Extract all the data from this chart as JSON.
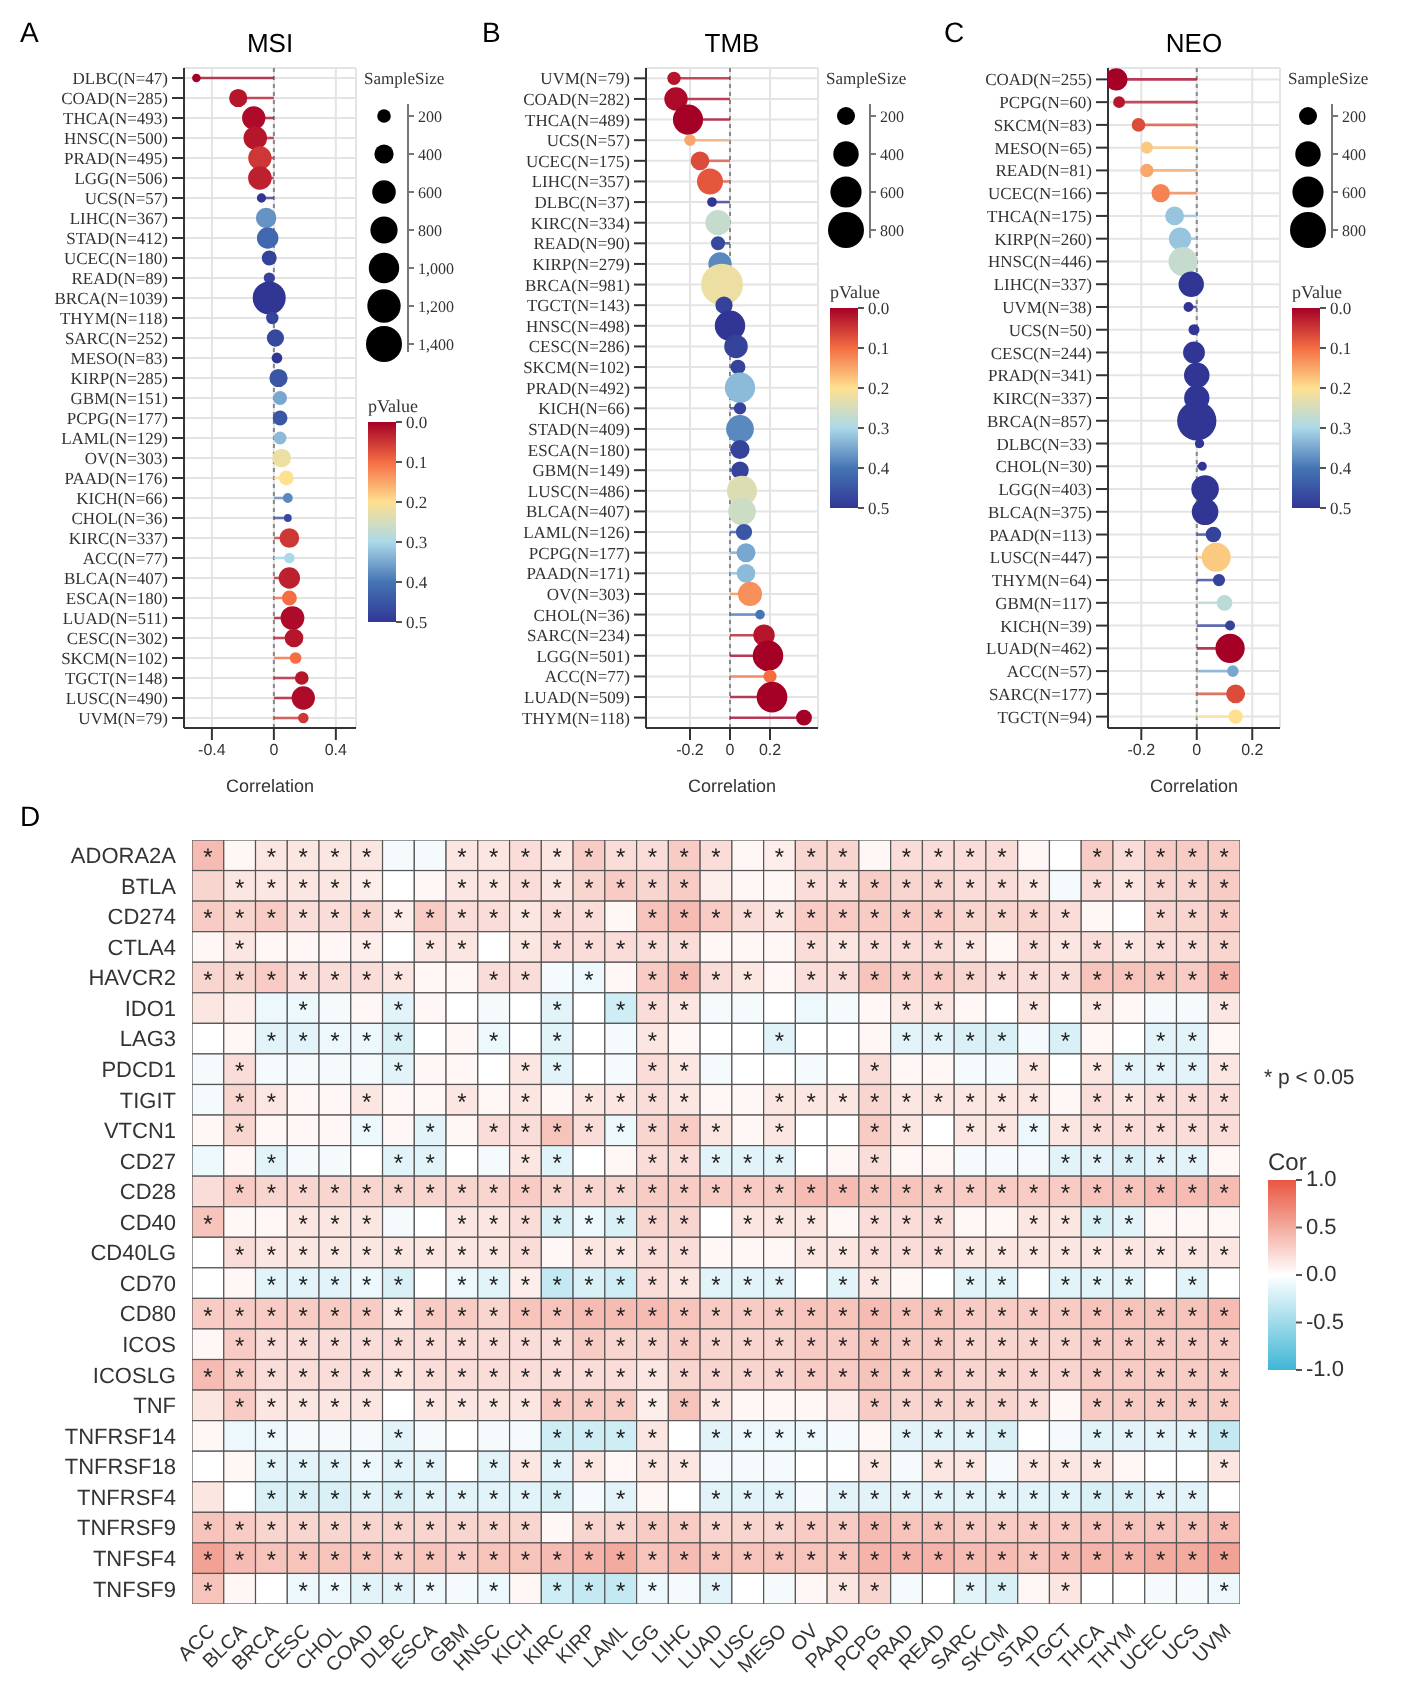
{
  "chart_data": [
    {
      "type": "lollipop",
      "orientation": "horizontal",
      "title": "MSI",
      "xlabel": "Correlation",
      "annotations": [
        "A"
      ],
      "legend_title": "SampleSize",
      "clabel": "pValue",
      "grid": true,
      "categories": [
        "DLBC(N=47)",
        "COAD(N=285)",
        "THCA(N=493)",
        "HNSC(N=500)",
        "PRAD(N=495)",
        "LGG(N=506)",
        "UCS(N=57)",
        "LIHC(N=367)",
        "STAD(N=412)",
        "UCEC(N=180)",
        "READ(N=89)",
        "BRCA(N=1039)",
        "THYM(N=118)",
        "SARC(N=252)",
        "MESO(N=83)",
        "KIRP(N=285)",
        "GBM(N=151)",
        "PCPG(N=177)",
        "LAML(N=129)",
        "OV(N=303)",
        "PAAD(N=176)",
        "KICH(N=66)",
        "CHOL(N=36)",
        "KIRC(N=337)",
        "ACC(N=77)",
        "BLCA(N=407)",
        "ESCA(N=180)",
        "LUAD(N=511)",
        "CESC(N=302)",
        "SKCM(N=102)",
        "TGCT(N=148)",
        "LUSC(N=490)",
        "UVM(N=79)"
      ],
      "values": [
        -0.5,
        -0.23,
        -0.13,
        -0.12,
        -0.09,
        -0.09,
        -0.08,
        -0.05,
        -0.04,
        -0.03,
        -0.03,
        -0.03,
        -0.01,
        0.01,
        0.02,
        0.03,
        0.04,
        0.04,
        0.04,
        0.05,
        0.08,
        0.09,
        0.09,
        0.1,
        0.1,
        0.1,
        0.1,
        0.12,
        0.13,
        0.14,
        0.18,
        0.19,
        0.19
      ],
      "sizes": [
        47,
        285,
        493,
        500,
        495,
        506,
        57,
        367,
        412,
        180,
        89,
        1039,
        118,
        252,
        83,
        285,
        151,
        177,
        129,
        303,
        176,
        66,
        36,
        337,
        77,
        407,
        180,
        511,
        302,
        102,
        148,
        490,
        79
      ],
      "cvalues": [
        0,
        0.02,
        0.01,
        0.02,
        0.05,
        0.03,
        0.5,
        0.37,
        0.42,
        0.48,
        0.48,
        0.5,
        0.48,
        0.47,
        0.5,
        0.45,
        0.35,
        0.45,
        0.33,
        0.22,
        0.2,
        0.38,
        0.47,
        0.05,
        0.3,
        0.03,
        0.1,
        0.01,
        0.02,
        0.1,
        0.02,
        0.01,
        0.05
      ],
      "size_legend": [
        200,
        400,
        600,
        800,
        {
          "value": 1000,
          "label": "1,000"
        },
        {
          "value": 1200,
          "label": "1,200"
        },
        {
          "value": 1400,
          "label": "1,400"
        }
      ],
      "clim": [
        0.5,
        0
      ],
      "cticks": [
        {
          "value": 0,
          "label": "0.0"
        },
        0.1,
        0.2,
        0.3,
        0.4,
        0.5
      ],
      "xlim": [
        -0.58,
        0.53
      ],
      "xticks": [
        -0.4,
        0,
        0.4
      ],
      "ref_lines": [
        {
          "axis": "x",
          "value": 0,
          "line_style": "dotted"
        }
      ]
    },
    {
      "type": "lollipop",
      "orientation": "horizontal",
      "title": "TMB",
      "xlabel": "Correlation",
      "annotations": [
        "B"
      ],
      "legend_title": "SampleSize",
      "clabel": "pValue",
      "grid": true,
      "categories": [
        "UVM(N=79)",
        "COAD(N=282)",
        "THCA(N=489)",
        "UCS(N=57)",
        "UCEC(N=175)",
        "LIHC(N=357)",
        "DLBC(N=37)",
        "KIRC(N=334)",
        "READ(N=90)",
        "KIRP(N=279)",
        "BRCA(N=981)",
        "TGCT(N=143)",
        "HNSC(N=498)",
        "CESC(N=286)",
        "SKCM(N=102)",
        "PRAD(N=492)",
        "KICH(N=66)",
        "STAD(N=409)",
        "ESCA(N=180)",
        "GBM(N=149)",
        "LUSC(N=486)",
        "BLCA(N=407)",
        "LAML(N=126)",
        "PCPG(N=177)",
        "PAAD(N=171)",
        "OV(N=303)",
        "CHOL(N=36)",
        "SARC(N=234)",
        "LGG(N=501)",
        "ACC(N=77)",
        "LUAD(N=509)",
        "THYM(N=118)"
      ],
      "values": [
        -0.28,
        -0.27,
        -0.21,
        -0.2,
        -0.15,
        -0.1,
        -0.09,
        -0.06,
        -0.06,
        -0.05,
        -0.04,
        -0.03,
        0,
        0.03,
        0.04,
        0.05,
        0.05,
        0.05,
        0.05,
        0.05,
        0.06,
        0.06,
        0.07,
        0.08,
        0.08,
        0.1,
        0.15,
        0.17,
        0.19,
        0.2,
        0.21,
        0.37
      ],
      "sizes": [
        79,
        282,
        489,
        57,
        175,
        357,
        37,
        334,
        90,
        279,
        981,
        143,
        498,
        286,
        102,
        492,
        66,
        409,
        180,
        149,
        486,
        407,
        126,
        177,
        171,
        303,
        36,
        234,
        501,
        77,
        509,
        118
      ],
      "cvalues": [
        0.02,
        0.01,
        0,
        0.15,
        0.07,
        0.08,
        0.5,
        0.27,
        0.47,
        0.38,
        0.22,
        0.48,
        0.5,
        0.48,
        0.48,
        0.33,
        0.48,
        0.38,
        0.48,
        0.48,
        0.24,
        0.26,
        0.45,
        0.35,
        0.33,
        0.13,
        0.4,
        0.02,
        0,
        0.1,
        0,
        0
      ],
      "size_legend": [
        200,
        400,
        600,
        800
      ],
      "clim": [
        0.5,
        0
      ],
      "cticks": [
        {
          "value": 0,
          "label": "0.0"
        },
        0.1,
        0.2,
        0.3,
        0.4,
        0.5
      ],
      "xlim": [
        -0.42,
        0.44
      ],
      "xticks": [
        -0.2,
        0,
        0.2
      ],
      "ref_lines": [
        {
          "axis": "x",
          "value": 0,
          "line_style": "dotted"
        }
      ]
    },
    {
      "type": "lollipop",
      "orientation": "horizontal",
      "title": "NEO",
      "xlabel": "Correlation",
      "annotations": [
        "C"
      ],
      "legend_title": "SampleSize",
      "clabel": "pValue",
      "grid": true,
      "categories": [
        "COAD(N=255)",
        "PCPG(N=60)",
        "SKCM(N=83)",
        "MESO(N=65)",
        "READ(N=81)",
        "UCEC(N=166)",
        "THCA(N=175)",
        "KIRP(N=260)",
        "HNSC(N=446)",
        "LIHC(N=337)",
        "UVM(N=38)",
        "UCS(N=50)",
        "CESC(N=244)",
        "PRAD(N=341)",
        "KIRC(N=337)",
        "BRCA(N=857)",
        "DLBC(N=33)",
        "CHOL(N=30)",
        "LGG(N=403)",
        "BLCA(N=375)",
        "PAAD(N=113)",
        "LUSC(N=447)",
        "THYM(N=64)",
        "GBM(N=117)",
        "KICH(N=39)",
        "LUAD(N=462)",
        "ACC(N=57)",
        "SARC(N=177)",
        "TGCT(N=94)"
      ],
      "values": [
        -0.29,
        -0.28,
        -0.21,
        -0.18,
        -0.18,
        -0.13,
        -0.08,
        -0.06,
        -0.05,
        -0.02,
        -0.03,
        -0.01,
        -0.01,
        0,
        0,
        0,
        0.01,
        0.02,
        0.03,
        0.03,
        0.06,
        0.07,
        0.08,
        0.1,
        0.12,
        0.12,
        0.13,
        0.14,
        0.14
      ],
      "sizes": [
        255,
        60,
        83,
        65,
        81,
        166,
        175,
        260,
        446,
        337,
        38,
        50,
        244,
        341,
        337,
        857,
        33,
        30,
        403,
        375,
        113,
        447,
        64,
        117,
        39,
        462,
        57,
        177,
        94
      ],
      "cvalues": [
        0,
        0.02,
        0.07,
        0.18,
        0.15,
        0.12,
        0.32,
        0.32,
        0.27,
        0.5,
        0.5,
        0.5,
        0.5,
        0.5,
        0.5,
        0.5,
        0.5,
        0.5,
        0.5,
        0.5,
        0.48,
        0.18,
        0.48,
        0.28,
        0.48,
        0,
        0.35,
        0.07,
        0.2
      ],
      "size_legend": [
        200,
        400,
        600,
        800
      ],
      "clim": [
        0.5,
        0
      ],
      "cticks": [
        {
          "value": 0,
          "label": "0.0"
        },
        0.1,
        0.2,
        0.3,
        0.4,
        0.5
      ],
      "xlim": [
        -0.32,
        0.3
      ],
      "xticks": [
        -0.2,
        0,
        0.2
      ],
      "ref_lines": [
        {
          "axis": "x",
          "value": 0,
          "line_style": "dotted"
        }
      ]
    },
    {
      "type": "heatmap",
      "annotations": [
        "D",
        "* p < 0.05"
      ],
      "clabel": "Cor",
      "categories": [
        "ACC",
        "BLCA",
        "BRCA",
        "CESC",
        "CHOL",
        "COAD",
        "DLBC",
        "ESCA",
        "GBM",
        "HNSC",
        "KICH",
        "KIRC",
        "KIRP",
        "LAML",
        "LGG",
        "LIHC",
        "LUAD",
        "LUSC",
        "MESO",
        "OV",
        "PAAD",
        "PCPG",
        "PRAD",
        "READ",
        "SARC",
        "SKCM",
        "STAD",
        "TGCT",
        "THCA",
        "THYM",
        "UCEC",
        "UCS",
        "UVM"
      ],
      "y_categories": [
        "ADORA2A",
        "BTLA",
        "CD274",
        "CTLA4",
        "HAVCR2",
        "IDO1",
        "LAG3",
        "PDCD1",
        "TIGIT",
        "VTCN1",
        "CD27",
        "CD28",
        "CD40",
        "CD40LG",
        "CD70",
        "CD80",
        "ICOS",
        "ICOSLG",
        "TNF",
        "TNFRSF14",
        "TNFRSF18",
        "TNFRSF4",
        "TNFRSF9",
        "TNFSF4",
        "TNFSF9"
      ],
      "clim": [
        -1,
        1
      ],
      "cticks": [
        {
          "value": 1,
          "label": "1.0"
        },
        0.5,
        {
          "value": 0,
          "label": "0.0"
        },
        -0.5,
        {
          "value": -1,
          "label": "-1.0"
        }
      ],
      "cells": [
        [
          0.4,
          0.05,
          0.15,
          0.15,
          0.15,
          0.15,
          -0.05,
          -0.05,
          0.15,
          0.15,
          0.2,
          0.15,
          0.3,
          0.2,
          0.2,
          0.3,
          0.2,
          0.05,
          0.1,
          0.25,
          0.25,
          0.05,
          0.2,
          0.2,
          0.2,
          0.2,
          0.05,
          0,
          0.3,
          0.2,
          0.3,
          0.3,
          0.3
        ],
        [
          0.25,
          0.15,
          0.15,
          0.15,
          0.15,
          0.1,
          0,
          0.05,
          0.15,
          0.15,
          0.2,
          0.15,
          0.25,
          0.3,
          0.25,
          0.3,
          0.1,
          0.05,
          0.05,
          0.2,
          0.2,
          0.3,
          0.25,
          0.25,
          0.2,
          0.2,
          0.15,
          -0.05,
          0.2,
          0.15,
          0.25,
          0.25,
          0.3
        ],
        [
          0.3,
          0.25,
          0.3,
          0.2,
          0.2,
          0.25,
          0.1,
          0.3,
          0.2,
          0.2,
          0.15,
          0.2,
          0.2,
          0.05,
          0.35,
          0.4,
          0.3,
          0.2,
          0.15,
          0.3,
          0.3,
          0.3,
          0.3,
          0.3,
          0.25,
          0.25,
          0.25,
          0.2,
          0.05,
          0,
          0.25,
          0.25,
          0.3
        ],
        [
          0.05,
          0.15,
          0.05,
          0.05,
          0.05,
          0.1,
          0,
          0.15,
          0.15,
          0,
          0.15,
          0.2,
          0.2,
          0.2,
          0.2,
          0.2,
          0.05,
          0.05,
          0.05,
          0.2,
          0.15,
          0.2,
          0.2,
          0.2,
          0.15,
          0.05,
          0.2,
          0.15,
          0.2,
          0.15,
          0.2,
          0.2,
          0.25
        ],
        [
          0.25,
          0.25,
          0.3,
          0.2,
          0.2,
          0.2,
          0.15,
          0.05,
          0.05,
          0.2,
          0.2,
          -0.05,
          -0.1,
          0.05,
          0.3,
          0.4,
          0.2,
          0.15,
          0.05,
          0.2,
          0.2,
          0.35,
          0.3,
          0.3,
          0.25,
          0.2,
          0.2,
          0.2,
          0.35,
          0.35,
          0.35,
          0.3,
          0.45
        ],
        [
          0.15,
          0.1,
          -0.1,
          -0.1,
          -0.05,
          0.05,
          -0.15,
          0.05,
          0,
          -0.05,
          0,
          -0.15,
          0,
          -0.25,
          0.2,
          0.15,
          -0.05,
          -0.05,
          0,
          -0.1,
          -0.05,
          0.05,
          0.15,
          0.15,
          0.05,
          0,
          0.15,
          0,
          0.15,
          0.05,
          -0.05,
          -0.05,
          0.15
        ],
        [
          0,
          0.05,
          -0.15,
          -0.15,
          -0.1,
          -0.1,
          -0.2,
          0,
          0.05,
          -0.1,
          0,
          -0.15,
          0,
          -0.05,
          0.15,
          0.05,
          0,
          0,
          -0.15,
          0,
          0,
          0.05,
          -0.15,
          -0.15,
          -0.2,
          -0.2,
          -0.05,
          -0.2,
          0.05,
          0,
          -0.15,
          -0.15,
          0.05
        ],
        [
          -0.05,
          0.2,
          -0.05,
          -0.05,
          -0.05,
          -0.05,
          -0.15,
          0.05,
          0.05,
          0,
          0.15,
          -0.15,
          0,
          -0.05,
          0.2,
          0.15,
          -0.05,
          0,
          0,
          -0.05,
          0,
          0.2,
          0.05,
          0.05,
          -0.05,
          -0.05,
          0.15,
          0,
          0.15,
          -0.15,
          -0.15,
          -0.15,
          0.15
        ],
        [
          -0.05,
          0.25,
          0.15,
          0.05,
          0.05,
          0.15,
          0.05,
          0.05,
          0.15,
          0.05,
          0.15,
          0.05,
          0.15,
          0.15,
          0.2,
          0.15,
          0.05,
          0.05,
          0.15,
          0.15,
          0.15,
          0.25,
          0.15,
          0.15,
          0.15,
          0.15,
          0.15,
          0.05,
          0.2,
          0.15,
          0.2,
          0.2,
          0.2
        ],
        [
          0.05,
          0.25,
          0.05,
          0.05,
          0.05,
          -0.1,
          0.05,
          -0.15,
          0.05,
          0.2,
          0.2,
          0.35,
          0.2,
          -0.1,
          0.25,
          0.3,
          0.15,
          0.05,
          0.15,
          0,
          0,
          0.3,
          0.15,
          0,
          0.15,
          0.15,
          -0.1,
          0.15,
          0.2,
          0.2,
          0.2,
          0.2,
          0.2
        ],
        [
          -0.1,
          0.05,
          -0.15,
          -0.05,
          -0.05,
          0,
          -0.15,
          -0.15,
          0,
          -0.05,
          0.15,
          -0.15,
          0,
          0.05,
          0.2,
          0.2,
          -0.15,
          -0.15,
          -0.15,
          0,
          0.05,
          0.2,
          0.05,
          0.05,
          -0.05,
          -0.05,
          -0.05,
          -0.15,
          -0.15,
          -0.2,
          -0.15,
          -0.15,
          0.05
        ],
        [
          0.2,
          0.3,
          0.25,
          0.25,
          0.25,
          0.25,
          0.25,
          0.25,
          0.25,
          0.25,
          0.3,
          0.25,
          0.25,
          0.25,
          0.3,
          0.3,
          0.3,
          0.3,
          0.3,
          0.4,
          0.4,
          0.35,
          0.35,
          0.3,
          0.3,
          0.3,
          0.3,
          0.3,
          0.35,
          0.35,
          0.4,
          0.4,
          0.4
        ],
        [
          0.35,
          0.05,
          0.05,
          0.15,
          0.15,
          0.15,
          -0.05,
          0,
          0.15,
          0.15,
          0.2,
          -0.2,
          -0.1,
          -0.2,
          0.25,
          0.25,
          0,
          0.15,
          0.15,
          0.15,
          0.05,
          0.2,
          0.2,
          0.2,
          0.05,
          0.05,
          0.15,
          0.15,
          -0.2,
          -0.15,
          0.05,
          0.05,
          0.05
        ],
        [
          0,
          0.2,
          0.15,
          0.15,
          0.15,
          0.15,
          0.15,
          0.15,
          0.15,
          0.15,
          0.2,
          0.05,
          0.15,
          0.15,
          0.2,
          0.2,
          0.05,
          0.05,
          0.05,
          0.15,
          0.15,
          0.2,
          0.2,
          0.2,
          0.15,
          0.15,
          0.15,
          0.15,
          0.15,
          0.15,
          0.15,
          0.15,
          0.15
        ],
        [
          0,
          0.05,
          -0.15,
          -0.15,
          -0.15,
          -0.1,
          -0.2,
          0,
          -0.1,
          -0.15,
          0.1,
          -0.3,
          -0.2,
          -0.25,
          0.2,
          0.15,
          -0.15,
          -0.15,
          -0.15,
          0,
          -0.15,
          0.15,
          0.05,
          0,
          -0.15,
          -0.15,
          0,
          -0.15,
          -0.15,
          -0.15,
          0,
          -0.15,
          0
        ],
        [
          0.3,
          0.3,
          0.3,
          0.3,
          0.3,
          0.3,
          0.15,
          0.3,
          0.3,
          0.25,
          0.35,
          0.35,
          0.4,
          0.4,
          0.4,
          0.35,
          0.3,
          0.3,
          0.3,
          0.35,
          0.35,
          0.4,
          0.35,
          0.35,
          0.3,
          0.3,
          0.3,
          0.3,
          0.35,
          0.35,
          0.35,
          0.35,
          0.4
        ],
        [
          0.05,
          0.3,
          0.2,
          0.2,
          0.2,
          0.2,
          0.2,
          0.2,
          0.2,
          0.2,
          0.2,
          0.2,
          0.3,
          0.25,
          0.25,
          0.3,
          0.25,
          0.25,
          0.25,
          0.3,
          0.3,
          0.35,
          0.3,
          0.3,
          0.25,
          0.25,
          0.25,
          0.25,
          0.3,
          0.3,
          0.3,
          0.3,
          0.3
        ],
        [
          0.4,
          0.3,
          0.2,
          0.2,
          0.2,
          0.2,
          0.15,
          0.2,
          0.2,
          0.2,
          0.2,
          0.2,
          0.2,
          0.2,
          0.15,
          0.25,
          0.25,
          0.25,
          0.25,
          0.3,
          0.3,
          0.35,
          0.3,
          0.3,
          0.25,
          0.25,
          0.25,
          0.25,
          0.3,
          0.3,
          0.3,
          0.3,
          0.3
        ],
        [
          0.15,
          0.3,
          0.15,
          0.15,
          0.15,
          0.15,
          0,
          0.15,
          0.15,
          0.15,
          0.15,
          0.3,
          0.3,
          0.3,
          0.1,
          0.35,
          0.15,
          0.05,
          0.05,
          0.05,
          0.1,
          0.3,
          0.25,
          0.25,
          0.25,
          0.25,
          0.2,
          0.05,
          0.3,
          0.3,
          0.3,
          0.3,
          0.3
        ],
        [
          0.05,
          -0.1,
          -0.1,
          -0.05,
          -0.05,
          -0.05,
          -0.15,
          -0.05,
          0,
          -0.05,
          -0.05,
          -0.25,
          -0.25,
          -0.25,
          0.15,
          0,
          -0.15,
          -0.1,
          -0.1,
          -0.1,
          -0.05,
          0.05,
          -0.15,
          -0.15,
          -0.15,
          -0.2,
          0,
          -0.05,
          -0.15,
          -0.15,
          -0.15,
          -0.15,
          -0.3
        ],
        [
          0,
          0.05,
          -0.15,
          -0.15,
          -0.15,
          -0.1,
          -0.15,
          -0.15,
          0,
          -0.15,
          0.15,
          -0.15,
          0.15,
          0.05,
          0.15,
          0.15,
          -0.05,
          -0.05,
          -0.05,
          0,
          0,
          0.15,
          -0.05,
          0.15,
          0.15,
          -0.05,
          0.15,
          0.15,
          0.15,
          0.05,
          0,
          0,
          0.15
        ],
        [
          0.15,
          0,
          -0.2,
          -0.2,
          -0.2,
          -0.15,
          -0.2,
          -0.15,
          -0.15,
          -0.15,
          -0.15,
          -0.2,
          -0.05,
          -0.15,
          0.05,
          0,
          -0.15,
          -0.15,
          -0.15,
          -0.05,
          -0.15,
          -0.15,
          -0.15,
          -0.15,
          -0.15,
          -0.15,
          -0.15,
          -0.15,
          -0.2,
          -0.2,
          -0.15,
          -0.15,
          0
        ],
        [
          0.35,
          0.3,
          0.25,
          0.25,
          0.25,
          0.25,
          0.25,
          0.25,
          0.25,
          0.25,
          0.25,
          0.05,
          0.25,
          0.25,
          0.3,
          0.3,
          0.25,
          0.25,
          0.25,
          0.3,
          0.3,
          0.4,
          0.35,
          0.35,
          0.3,
          0.3,
          0.3,
          0.3,
          0.35,
          0.35,
          0.35,
          0.35,
          0.4
        ],
        [
          0.55,
          0.4,
          0.35,
          0.35,
          0.35,
          0.35,
          0.3,
          0.35,
          0.3,
          0.35,
          0.35,
          0.4,
          0.45,
          0.5,
          0.35,
          0.4,
          0.35,
          0.35,
          0.35,
          0.35,
          0.35,
          0.45,
          0.45,
          0.45,
          0.4,
          0.4,
          0.35,
          0.4,
          0.45,
          0.45,
          0.5,
          0.5,
          0.55
        ],
        [
          0.35,
          0.05,
          0,
          -0.1,
          -0.1,
          -0.15,
          -0.15,
          -0.1,
          -0.05,
          -0.1,
          0.05,
          -0.25,
          -0.3,
          -0.3,
          -0.1,
          -0.05,
          -0.15,
          0,
          -0.05,
          0.05,
          0.15,
          0.25,
          -0.05,
          0,
          -0.15,
          -0.2,
          0.05,
          0.15,
          0,
          0,
          -0.05,
          -0.05,
          -0.1
        ]
      ],
      "cell_labels": [
        [
          "*",
          null,
          "*",
          "*",
          "*",
          "*",
          null,
          null,
          "*",
          "*",
          "*",
          "*",
          "*",
          "*",
          "*",
          "*",
          "*",
          null,
          "*",
          "*",
          "*",
          null,
          "*",
          "*",
          "*",
          "*",
          null,
          null,
          "*",
          "*",
          "*",
          "*",
          "*"
        ],
        [
          null,
          "*",
          "*",
          "*",
          "*",
          "*",
          null,
          null,
          "*",
          "*",
          "*",
          "*",
          "*",
          "*",
          "*",
          "*",
          null,
          null,
          null,
          "*",
          "*",
          "*",
          "*",
          "*",
          "*",
          "*",
          "*",
          null,
          "*",
          "*",
          "*",
          "*",
          "*"
        ],
        [
          "*",
          "*",
          "*",
          "*",
          "*",
          "*",
          "*",
          "*",
          "*",
          "*",
          "*",
          "*",
          "*",
          null,
          "*",
          "*",
          "*",
          "*",
          "*",
          "*",
          "*",
          "*",
          "*",
          "*",
          "*",
          "*",
          "*",
          "*",
          null,
          null,
          "*",
          "*",
          "*"
        ],
        [
          null,
          "*",
          null,
          null,
          null,
          "*",
          null,
          "*",
          "*",
          null,
          "*",
          "*",
          "*",
          "*",
          "*",
          "*",
          null,
          null,
          null,
          "*",
          "*",
          "*",
          "*",
          "*",
          "*",
          null,
          "*",
          "*",
          "*",
          "*",
          "*",
          "*",
          "*"
        ],
        [
          "*",
          "*",
          "*",
          "*",
          "*",
          "*",
          "*",
          null,
          null,
          "*",
          "*",
          null,
          "*",
          null,
          "*",
          "*",
          "*",
          "*",
          null,
          "*",
          "*",
          "*",
          "*",
          "*",
          "*",
          "*",
          "*",
          "*",
          "*",
          "*",
          "*",
          "*",
          "*"
        ],
        [
          null,
          null,
          null,
          "*",
          null,
          null,
          "*",
          null,
          null,
          null,
          null,
          "*",
          null,
          "*",
          "*",
          "*",
          null,
          null,
          null,
          null,
          null,
          null,
          "*",
          "*",
          null,
          null,
          "*",
          null,
          "*",
          null,
          null,
          null,
          "*"
        ],
        [
          null,
          null,
          "*",
          "*",
          "*",
          "*",
          "*",
          null,
          null,
          "*",
          null,
          "*",
          null,
          null,
          "*",
          null,
          null,
          null,
          "*",
          null,
          null,
          null,
          "*",
          "*",
          "*",
          "*",
          null,
          "*",
          null,
          null,
          "*",
          "*",
          null
        ],
        [
          null,
          "*",
          null,
          null,
          null,
          null,
          "*",
          null,
          null,
          null,
          "*",
          "*",
          null,
          null,
          "*",
          "*",
          null,
          null,
          null,
          null,
          null,
          "*",
          null,
          null,
          null,
          null,
          "*",
          null,
          "*",
          "*",
          "*",
          "*",
          "*"
        ],
        [
          null,
          "*",
          "*",
          null,
          null,
          "*",
          null,
          null,
          "*",
          null,
          "*",
          null,
          "*",
          "*",
          "*",
          "*",
          null,
          null,
          "*",
          "*",
          "*",
          "*",
          "*",
          "*",
          "*",
          "*",
          "*",
          null,
          "*",
          "*",
          "*",
          "*",
          "*"
        ],
        [
          null,
          "*",
          null,
          null,
          null,
          "*",
          null,
          "*",
          null,
          "*",
          "*",
          "*",
          "*",
          "*",
          "*",
          "*",
          "*",
          null,
          "*",
          null,
          null,
          "*",
          "*",
          null,
          "*",
          "*",
          "*",
          "*",
          "*",
          "*",
          "*",
          "*",
          "*"
        ],
        [
          null,
          null,
          "*",
          null,
          null,
          null,
          "*",
          "*",
          null,
          null,
          "*",
          "*",
          null,
          null,
          "*",
          "*",
          "*",
          "*",
          "*",
          null,
          null,
          "*",
          null,
          null,
          null,
          null,
          null,
          "*",
          "*",
          "*",
          "*",
          "*",
          null
        ],
        [
          null,
          "*",
          "*",
          "*",
          "*",
          "*",
          "*",
          "*",
          "*",
          "*",
          "*",
          "*",
          "*",
          "*",
          "*",
          "*",
          "*",
          "*",
          "*",
          "*",
          "*",
          "*",
          "*",
          "*",
          "*",
          "*",
          "*",
          "*",
          "*",
          "*",
          "*",
          "*",
          "*"
        ],
        [
          "*",
          null,
          null,
          "*",
          "*",
          "*",
          null,
          null,
          "*",
          "*",
          "*",
          "*",
          "*",
          "*",
          "*",
          "*",
          null,
          "*",
          "*",
          "*",
          null,
          "*",
          "*",
          "*",
          null,
          null,
          "*",
          "*",
          "*",
          "*",
          null,
          null,
          null
        ],
        [
          null,
          "*",
          "*",
          "*",
          "*",
          "*",
          "*",
          "*",
          "*",
          "*",
          "*",
          null,
          "*",
          "*",
          "*",
          "*",
          null,
          null,
          null,
          "*",
          "*",
          "*",
          "*",
          "*",
          "*",
          "*",
          "*",
          "*",
          "*",
          "*",
          "*",
          "*",
          "*"
        ],
        [
          null,
          null,
          "*",
          "*",
          "*",
          "*",
          "*",
          null,
          "*",
          "*",
          "*",
          "*",
          "*",
          "*",
          "*",
          "*",
          "*",
          "*",
          "*",
          null,
          "*",
          "*",
          null,
          null,
          "*",
          "*",
          null,
          "*",
          "*",
          "*",
          null,
          "*",
          null
        ],
        [
          "*",
          "*",
          "*",
          "*",
          "*",
          "*",
          "*",
          "*",
          "*",
          "*",
          "*",
          "*",
          "*",
          "*",
          "*",
          "*",
          "*",
          "*",
          "*",
          "*",
          "*",
          "*",
          "*",
          "*",
          "*",
          "*",
          "*",
          "*",
          "*",
          "*",
          "*",
          "*",
          "*"
        ],
        [
          null,
          "*",
          "*",
          "*",
          "*",
          "*",
          "*",
          "*",
          "*",
          "*",
          "*",
          "*",
          "*",
          "*",
          "*",
          "*",
          "*",
          "*",
          "*",
          "*",
          "*",
          "*",
          "*",
          "*",
          "*",
          "*",
          "*",
          "*",
          "*",
          "*",
          "*",
          "*",
          "*"
        ],
        [
          "*",
          "*",
          "*",
          "*",
          "*",
          "*",
          "*",
          "*",
          "*",
          "*",
          "*",
          "*",
          "*",
          "*",
          "*",
          "*",
          "*",
          "*",
          "*",
          "*",
          "*",
          "*",
          "*",
          "*",
          "*",
          "*",
          "*",
          "*",
          "*",
          "*",
          "*",
          "*",
          "*"
        ],
        [
          null,
          "*",
          "*",
          "*",
          "*",
          "*",
          null,
          "*",
          "*",
          "*",
          "*",
          "*",
          "*",
          "*",
          "*",
          "*",
          "*",
          null,
          null,
          null,
          null,
          "*",
          "*",
          "*",
          "*",
          "*",
          "*",
          null,
          "*",
          "*",
          "*",
          "*",
          "*"
        ],
        [
          null,
          null,
          "*",
          null,
          null,
          null,
          "*",
          null,
          null,
          null,
          null,
          "*",
          "*",
          "*",
          "*",
          null,
          "*",
          "*",
          "*",
          "*",
          null,
          null,
          "*",
          "*",
          "*",
          "*",
          null,
          null,
          "*",
          "*",
          "*",
          "*",
          "*"
        ],
        [
          null,
          null,
          "*",
          "*",
          "*",
          "*",
          "*",
          "*",
          null,
          "*",
          "*",
          "*",
          "*",
          null,
          "*",
          "*",
          null,
          null,
          null,
          null,
          null,
          "*",
          null,
          "*",
          "*",
          null,
          "*",
          "*",
          "*",
          null,
          null,
          null,
          "*"
        ],
        [
          null,
          null,
          "*",
          "*",
          "*",
          "*",
          "*",
          "*",
          "*",
          "*",
          "*",
          "*",
          null,
          "*",
          null,
          null,
          "*",
          "*",
          "*",
          null,
          "*",
          "*",
          "*",
          "*",
          "*",
          "*",
          "*",
          "*",
          "*",
          "*",
          "*",
          "*",
          null
        ],
        [
          "*",
          "*",
          "*",
          "*",
          "*",
          "*",
          "*",
          "*",
          "*",
          "*",
          "*",
          null,
          "*",
          "*",
          "*",
          "*",
          "*",
          "*",
          "*",
          "*",
          "*",
          "*",
          "*",
          "*",
          "*",
          "*",
          "*",
          "*",
          "*",
          "*",
          "*",
          "*",
          "*"
        ],
        [
          "*",
          "*",
          "*",
          "*",
          "*",
          "*",
          "*",
          "*",
          "*",
          "*",
          "*",
          "*",
          "*",
          "*",
          "*",
          "*",
          "*",
          "*",
          "*",
          "*",
          "*",
          "*",
          "*",
          "*",
          "*",
          "*",
          "*",
          "*",
          "*",
          "*",
          "*",
          "*",
          "*"
        ],
        [
          "*",
          null,
          null,
          "*",
          "*",
          "*",
          "*",
          "*",
          null,
          "*",
          null,
          "*",
          "*",
          "*",
          "*",
          null,
          "*",
          null,
          null,
          null,
          "*",
          "*",
          null,
          null,
          "*",
          "*",
          null,
          "*",
          null,
          null,
          null,
          null,
          "*"
        ]
      ]
    }
  ]
}
